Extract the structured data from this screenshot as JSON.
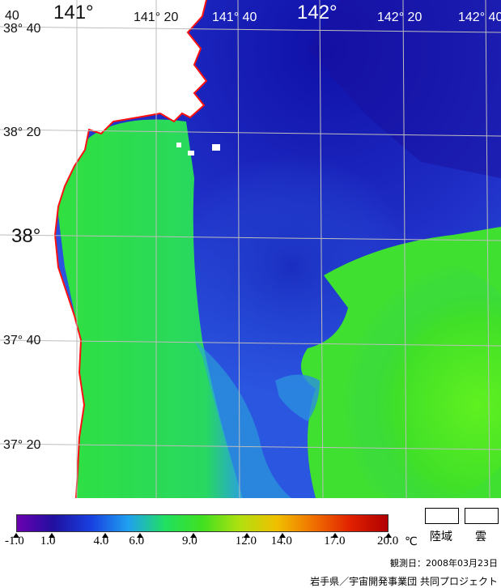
{
  "map": {
    "lon_labels_top": [
      "141°",
      "141° 20",
      "141° 40",
      "142°",
      "142° 20",
      "142° 40"
    ],
    "lat_labels_left": [
      "38° 40",
      "38° 20",
      "38°",
      "37° 40",
      "37° 20"
    ],
    "edge_fragment": "40",
    "colors": {
      "land": "#ffffff",
      "coastline": "#ff0000",
      "grid": "#bdbdbd",
      "deep_blue": "#1414b4",
      "blue": "#2a56e0",
      "green": "#2fe02a",
      "lime": "#55ee22"
    }
  },
  "legend": {
    "ticks": [
      "-1.0",
      "1.0",
      "4.0",
      "6.0",
      "9.0",
      "12.0",
      "14.0",
      "17.0",
      "20.0"
    ],
    "unit": "℃",
    "land_label": "陸域",
    "cloud_label": "雲",
    "colorbar_stops": [
      "#6a00b0",
      "#2010a0",
      "#1840e0",
      "#20a0f0",
      "#20e060",
      "#40e020",
      "#b0e010",
      "#f0c000",
      "#f07000",
      "#e02000",
      "#b00000"
    ]
  },
  "footer": {
    "observation_date": "観測日：2008年03月23日",
    "credit": "岩手県／宇宙開発事業団 共同プロジェクト"
  }
}
